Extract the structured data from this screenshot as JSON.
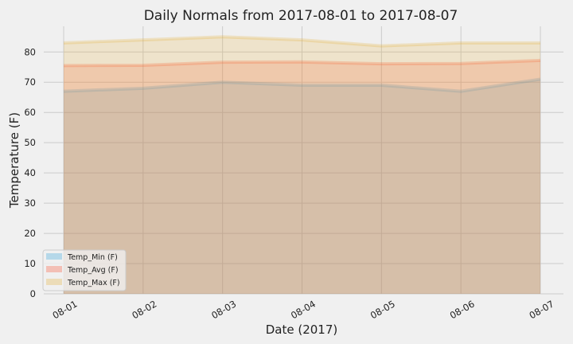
{
  "chart_data": {
    "type": "area",
    "title": "Daily Normals from 2017-08-01 to 2017-08-07",
    "xlabel": "Date (2017)",
    "ylabel": "Temperature (F)",
    "categories": [
      "08-01",
      "08-02",
      "08-03",
      "08-04",
      "08-05",
      "08-06",
      "08-07"
    ],
    "ylim": [
      0,
      88.5
    ],
    "yticks": [
      0,
      10,
      20,
      30,
      40,
      50,
      60,
      70,
      80
    ],
    "stacked": false,
    "grid": true,
    "legend_position": "lower-left",
    "series": [
      {
        "name": "Temp_Min (F)",
        "values": [
          67,
          68,
          70,
          69,
          69,
          67,
          71
        ],
        "color": "#30a2da"
      },
      {
        "name": "Temp_Avg (F)",
        "values": [
          75.5,
          75.6,
          76.6,
          76.7,
          76.1,
          76.2,
          77.2
        ],
        "color": "#fc4f30"
      },
      {
        "name": "Temp_Max (F)",
        "values": [
          83,
          84,
          85,
          84,
          82,
          83,
          83
        ],
        "color": "#e5ae38"
      }
    ]
  }
}
